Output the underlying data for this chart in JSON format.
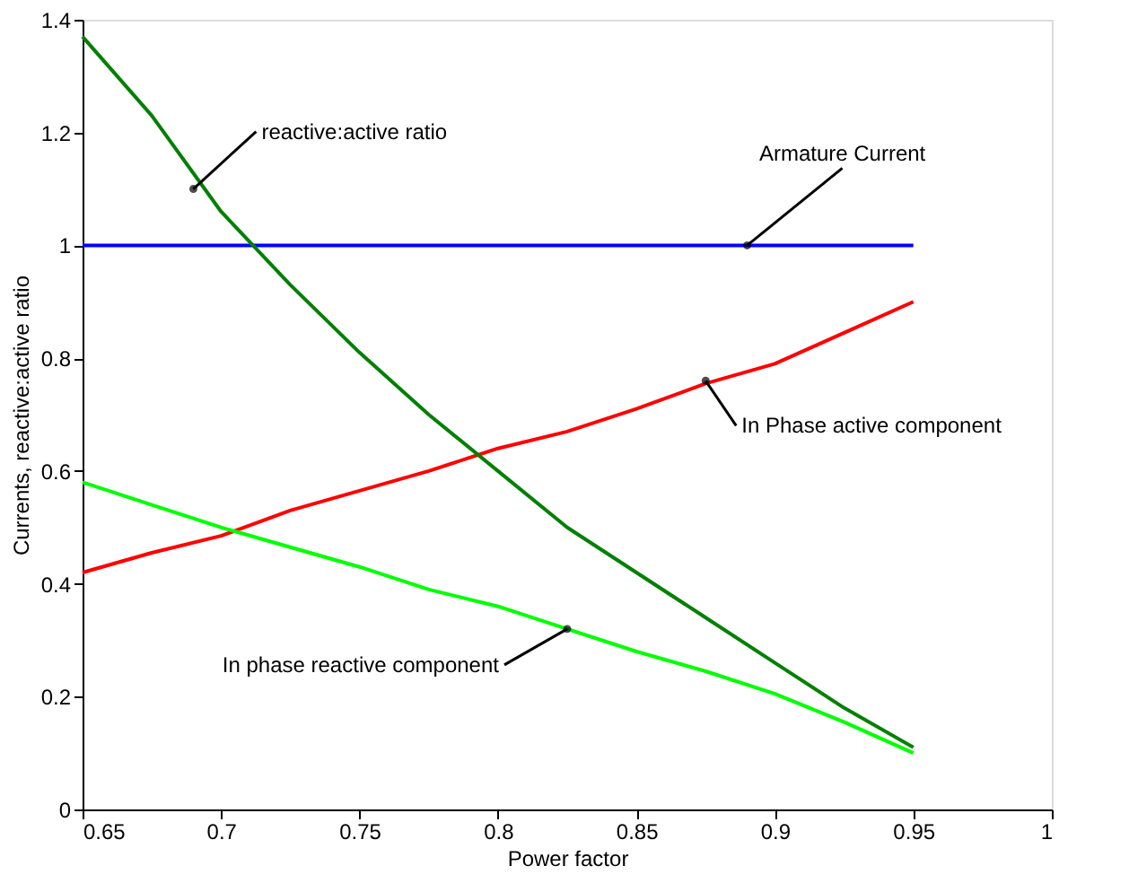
{
  "chart_data": {
    "type": "line",
    "xlabel": "Power factor",
    "ylabel": "Currents, reactive:active ratio",
    "x": [
      0.65,
      0.675,
      0.7,
      0.725,
      0.75,
      0.775,
      0.8,
      0.825,
      0.85,
      0.875,
      0.9,
      0.925,
      0.95
    ],
    "series": [
      {
        "color": "#0000ff",
        "values": [
          1,
          1,
          1,
          1,
          1,
          1,
          1,
          1,
          1,
          1,
          1,
          1,
          1
        ]
      },
      {
        "color": "#ff0000",
        "values": [
          0.42,
          0.455,
          0.485,
          0.53,
          0.565,
          0.6,
          0.64,
          0.67,
          0.71,
          0.755,
          0.79,
          0.845,
          0.9
        ]
      },
      {
        "color": "#00ff00",
        "values": [
          0.58,
          0.54,
          0.5,
          0.465,
          0.43,
          0.39,
          0.36,
          0.32,
          0.28,
          0.245,
          0.205,
          0.155,
          0.1
        ]
      },
      {
        "color": "#008000",
        "values": [
          1.37,
          1.23,
          1.06,
          0.93,
          0.81,
          0.7,
          0.6,
          0.5,
          0.42,
          0.34,
          0.26,
          0.18,
          0.11
        ]
      }
    ],
    "xlim": [
      0.65,
      1
    ],
    "xticks": [
      0.65,
      0.7,
      0.75,
      0.8,
      0.85,
      0.9,
      0.95,
      1
    ],
    "ylim": [
      0,
      1.4
    ],
    "yticks": [
      0,
      0.2,
      0.4,
      0.6,
      0.8,
      1,
      1.2,
      1.4
    ],
    "grid": false,
    "legend": false,
    "marker": "none",
    "line_style": "solid",
    "annotations": [
      {
        "text": "reactive:active ratio",
        "x": 0.69,
        "y": 1.1
      },
      {
        "text": "Armature Current",
        "x": 0.89,
        "y": 1
      },
      {
        "text": "In Phase active component",
        "x": 0.875,
        "y": 0.76
      },
      {
        "text": "In phase reactive component",
        "x": 0.825,
        "y": 0.32
      }
    ]
  }
}
